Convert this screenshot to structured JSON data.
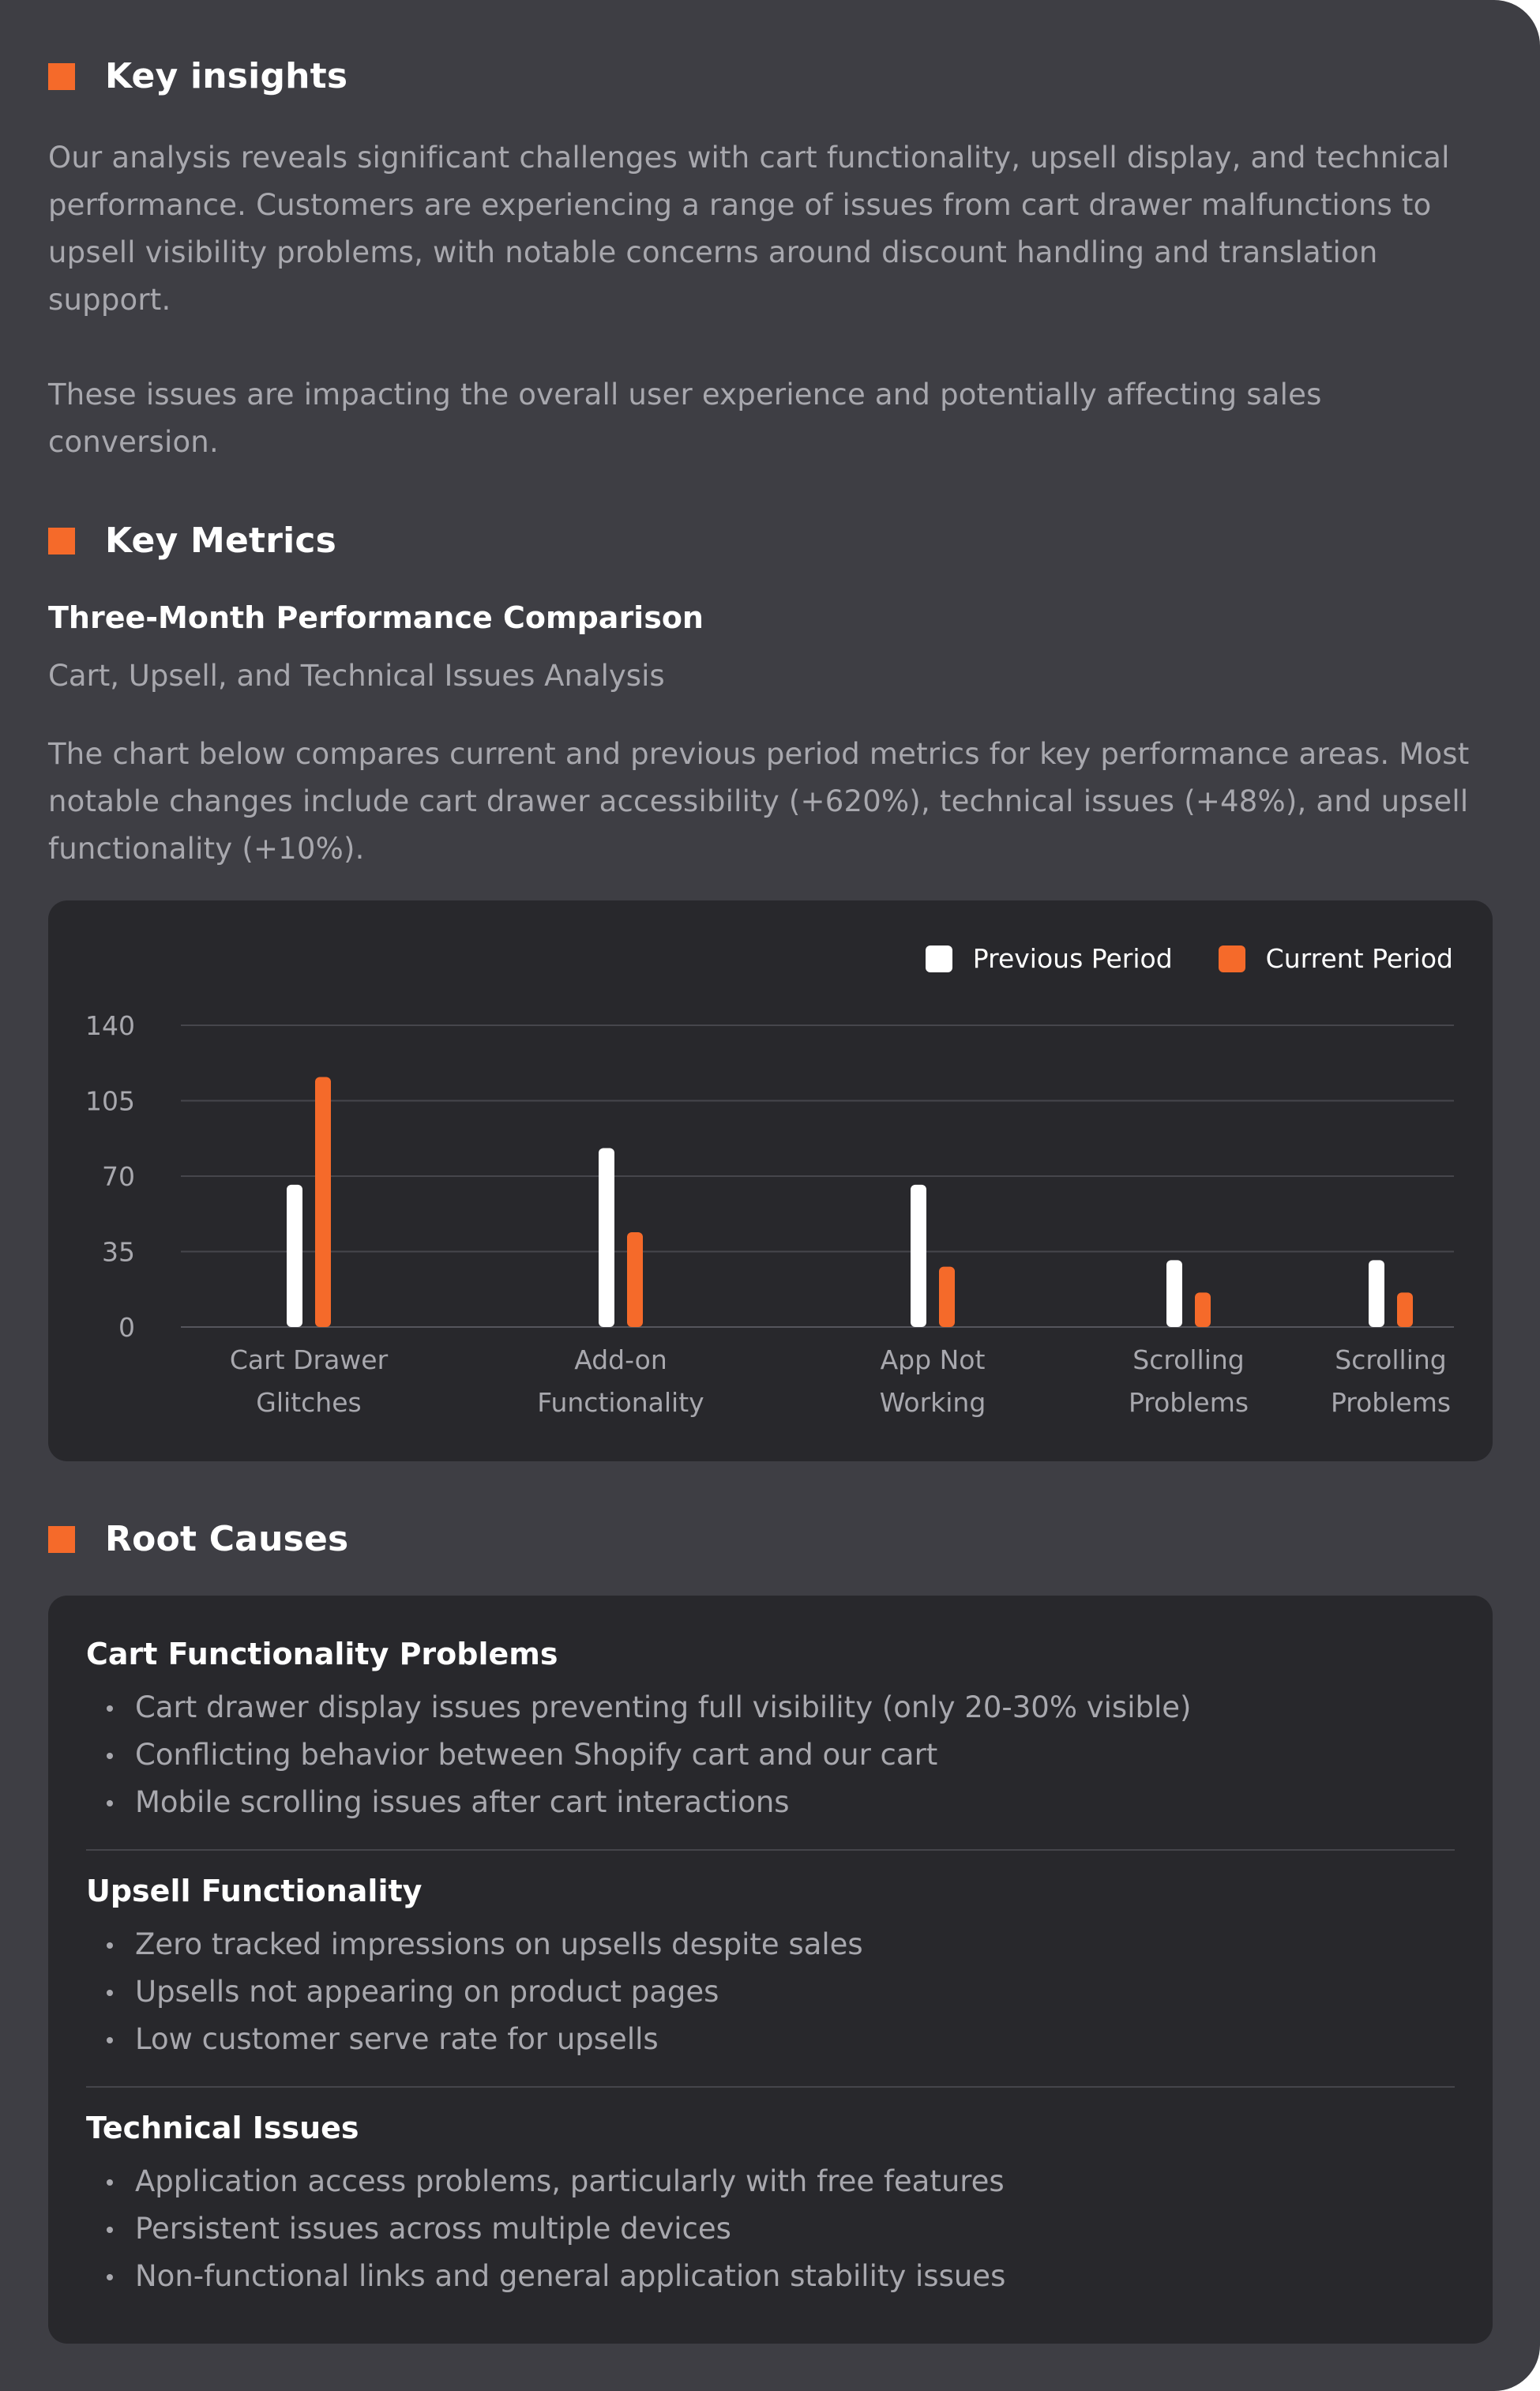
{
  "key_insights": {
    "title": "Key insights",
    "paragraph_1": "Our analysis reveals significant challenges with cart functionality, upsell display, and technical performance. Customers are experiencing a range of issues from cart drawer malfunctions to upsell visibility problems, with notable concerns around discount handling and translation support.",
    "paragraph_2": "These issues are impacting the overall user experience and potentially affecting sales conversion."
  },
  "key_metrics": {
    "title": "Key Metrics",
    "chart_title": "Three-Month Performance Comparison",
    "chart_subtitle": "Cart, Upsell, and Technical Issues Analysis",
    "description": "The chart below compares current and previous period metrics for key performance areas. Most notable changes include cart drawer accessibility (+620%), technical issues (+48%), and upsell functionality (+10%)."
  },
  "chart_data": {
    "type": "bar",
    "categories": [
      [
        "Cart Drawer",
        "Glitches"
      ],
      [
        "Add-on",
        "Functionality"
      ],
      [
        "App Not",
        "Working"
      ],
      [
        "Scrolling",
        "Problems"
      ],
      [
        "Scrolling",
        "Problems"
      ]
    ],
    "series": [
      {
        "name": "Previous Period",
        "color": "#ffffff",
        "values": [
          66,
          83,
          66,
          31,
          31
        ]
      },
      {
        "name": "Current Period",
        "color": "#f56a2a",
        "values": [
          116,
          44,
          28,
          16,
          16
        ]
      }
    ],
    "yticks": [
      0,
      35,
      70,
      105,
      140
    ],
    "ylim": [
      0,
      140
    ],
    "grid": true,
    "legend_position": "top-right",
    "title": "",
    "xlabel": "",
    "ylabel": ""
  },
  "root_causes": {
    "title": "Root Causes",
    "groups": [
      {
        "title": "Cart Functionality Problems",
        "items": [
          "Cart drawer display issues preventing full visibility (only 20-30% visible)",
          "Conflicting behavior between Shopify cart and our cart",
          "Mobile scrolling issues after cart interactions"
        ]
      },
      {
        "title": "Upsell Functionality",
        "items": [
          "Zero tracked impressions on upsells despite sales",
          "Upsells not appearing on product pages",
          "Low customer serve rate for upsells"
        ]
      },
      {
        "title": "Technical Issues",
        "items": [
          "Application access problems, particularly with free features",
          "Persistent issues across multiple devices",
          "Non-functional links and general application stability issues"
        ]
      }
    ]
  },
  "colors": {
    "accent": "#f56a2a",
    "card_background": "#3e3e44",
    "panel_background": "#28282c",
    "body_text": "#a8a8ae",
    "heading_text": "#ffffff"
  }
}
